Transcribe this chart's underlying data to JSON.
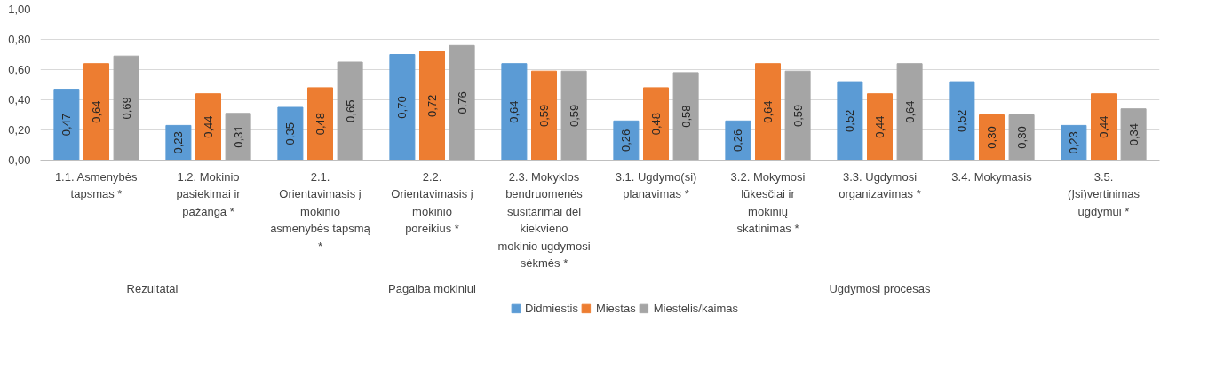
{
  "chart_data": {
    "type": "bar",
    "categories": [
      "1.1. Asmenybės tapsmas *",
      "1.2. Mokinio pasiekimai ir pažanga *",
      "2.1. Orientavimasis į mokinio asmenybės tapsmą *",
      "2.2. Orientavimasis į mokinio poreikius *",
      "2.3. Mokyklos bendruomenės susitarimai dėl kiekvieno mokinio ugdymosi sėkmės *",
      "3.1. Ugdymo(si) planavimas *",
      "3.2. Mokymosi lūkesčiai ir mokinių skatinimas *",
      "3.3. Ugdymosi organizavimas *",
      "3.4. Mokymasis",
      "3.5. (Įsi)vertinimas ugdymui *"
    ],
    "series": [
      {
        "name": "Didmiestis",
        "color": "#5b9bd5",
        "values": [
          0.47,
          0.23,
          0.35,
          0.7,
          0.64,
          0.26,
          0.26,
          0.52,
          0.52,
          0.23
        ],
        "value_labels": [
          "0,47",
          "0,23",
          "0,35",
          "0,70",
          "0,64",
          "0,26",
          "0,26",
          "0,52",
          "0,52",
          "0,23"
        ]
      },
      {
        "name": "Miestas",
        "color": "#ed7d31",
        "values": [
          0.64,
          0.44,
          0.48,
          0.72,
          0.59,
          0.48,
          0.64,
          0.44,
          0.3,
          0.44
        ],
        "value_labels": [
          "0,64",
          "0,44",
          "0,48",
          "0,72",
          "0,59",
          "0,48",
          "0,64",
          "0,44",
          "0,30",
          "0,44"
        ]
      },
      {
        "name": "Miestelis/kaimas",
        "color": "#a5a5a5",
        "values": [
          0.69,
          0.31,
          0.65,
          0.76,
          0.59,
          0.58,
          0.59,
          0.64,
          0.3,
          0.34
        ],
        "value_labels": [
          "0,69",
          "0,31",
          "0,65",
          "0,76",
          "0,59",
          "0,58",
          "0,59",
          "0,64",
          "0,30",
          "0,34"
        ]
      }
    ],
    "annotations": [
      "Rezultatai",
      "Pagalba mokiniui",
      "Ugdymosi procesas"
    ],
    "ylim": [
      0,
      1
    ],
    "yticks": [
      {
        "value": 0,
        "label": "0,00"
      },
      {
        "value": 0.2,
        "label": "0,20"
      },
      {
        "value": 0.4,
        "label": "0,40"
      },
      {
        "value": 0.6,
        "label": "0,60"
      },
      {
        "value": 0.8,
        "label": "0,80"
      },
      {
        "value": 1,
        "label": "1,00"
      }
    ],
    "grid": "y",
    "legend": "bottom"
  }
}
